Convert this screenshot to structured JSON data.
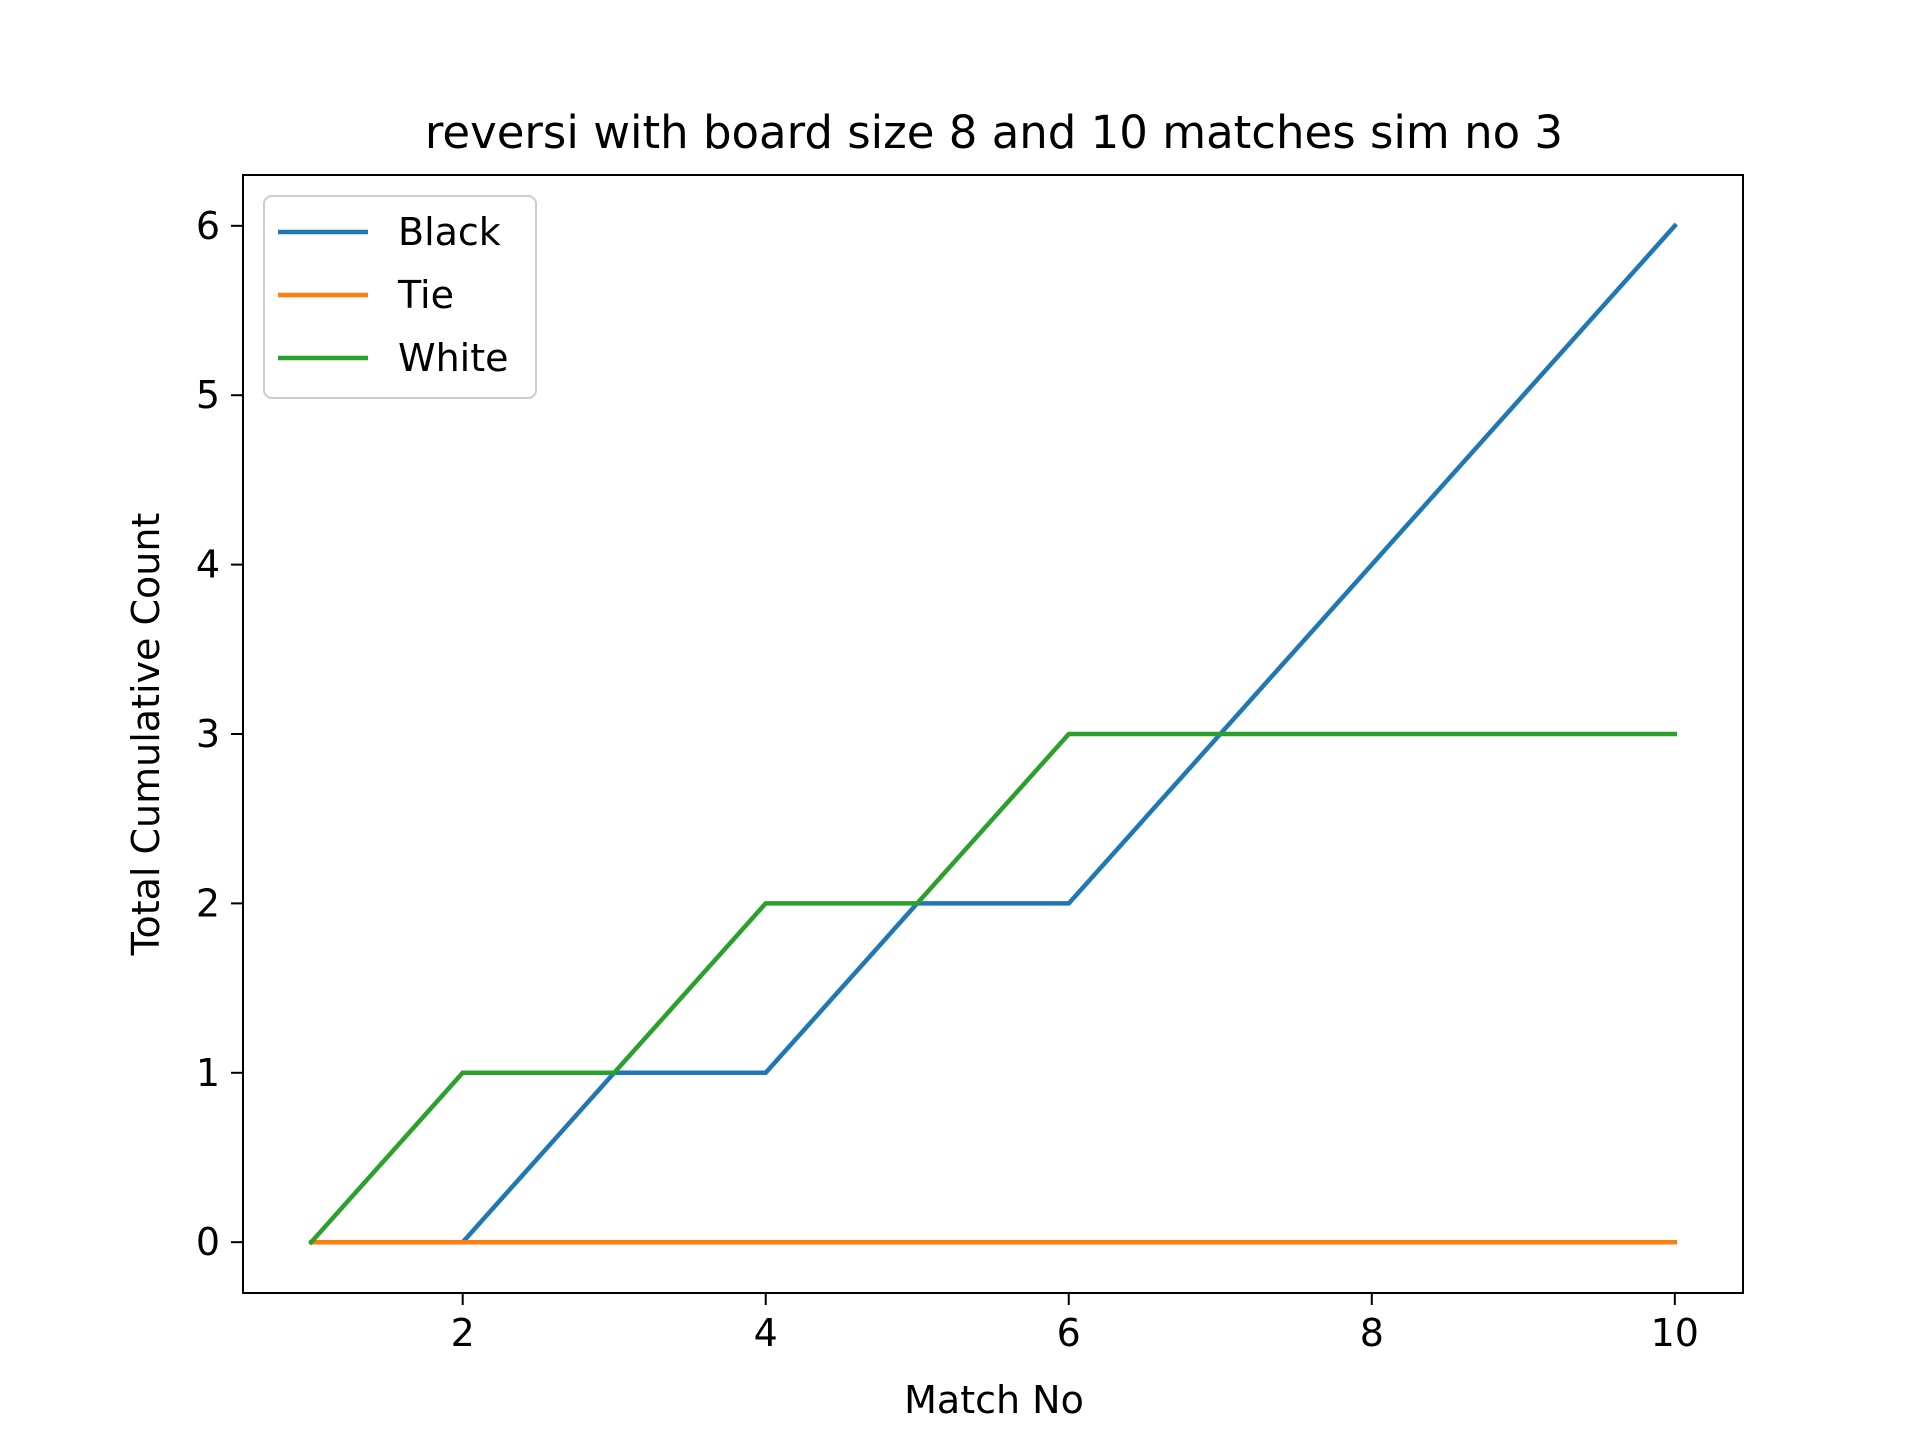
{
  "chart_data": {
    "type": "line",
    "title": "reversi with board size 8 and 10 matches sim no 3",
    "xlabel": "Match No",
    "ylabel": "Total Cumulative Count",
    "x": [
      1,
      2,
      3,
      4,
      5,
      6,
      7,
      8,
      9,
      10
    ],
    "xlim": [
      0.55,
      10.45
    ],
    "ylim": [
      -0.3,
      6.3
    ],
    "xticks": [
      2,
      4,
      6,
      8,
      10
    ],
    "yticks": [
      0,
      1,
      2,
      3,
      4,
      5,
      6
    ],
    "grid": false,
    "legend_position": "upper-left",
    "series": [
      {
        "name": "Black",
        "color": "#1f77b4",
        "values": [
          0,
          0,
          1,
          1,
          2,
          2,
          3,
          4,
          5,
          6
        ]
      },
      {
        "name": "Tie",
        "color": "#ff7f0e",
        "values": [
          0,
          0,
          0,
          0,
          0,
          0,
          0,
          0,
          0,
          0
        ]
      },
      {
        "name": "White",
        "color": "#2ca02c",
        "values": [
          0,
          1,
          1,
          2,
          2,
          3,
          3,
          3,
          3,
          3
        ]
      }
    ]
  }
}
